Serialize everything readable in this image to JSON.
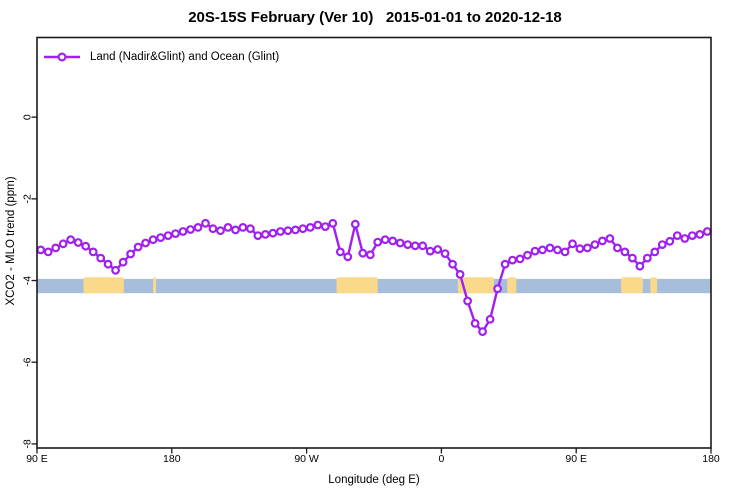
{
  "title": "20S-15S February (Ver 10)   2015-01-01 to 2020-12-18",
  "chart_data": {
    "type": "line",
    "title": "20S-15S February (Ver 10)   2015-01-01 to 2020-12-18",
    "xlabel": "Longitude (deg E)",
    "ylabel": "XCO2 - MLO trend (ppm)",
    "xlim": [
      90,
      540
    ],
    "ylim": [
      -8.1,
      1.95
    ],
    "grid": false,
    "x_ticks": [
      {
        "value": 90,
        "label": "90 E"
      },
      {
        "value": 180,
        "label": "180"
      },
      {
        "value": 270,
        "label": "90 W"
      },
      {
        "value": 360,
        "label": "0"
      },
      {
        "value": 450,
        "label": "90 E"
      },
      {
        "value": 540,
        "label": "180"
      }
    ],
    "y_ticks": [
      {
        "value": 0,
        "label": "0"
      },
      {
        "value": -2,
        "label": "-2"
      },
      {
        "value": -4,
        "label": "-4"
      },
      {
        "value": -6,
        "label": "-6"
      },
      {
        "value": -8,
        "label": "-8"
      }
    ],
    "legend": {
      "label": "Land (Nadir&Glint) and Ocean (Glint)",
      "position": "top-left",
      "marker": "open-circle-on-line"
    },
    "series": [
      {
        "name": "Land (Nadir&Glint) and Ocean (Glint)",
        "color": "#A020F0",
        "marker": "open-circle",
        "x": [
          92.5,
          97.5,
          102.5,
          107.5,
          112.5,
          117.5,
          122.5,
          127.5,
          132.5,
          137.5,
          142.5,
          147.5,
          152.5,
          157.5,
          162.5,
          167.5,
          172.5,
          177.5,
          182.5,
          187.5,
          192.5,
          197.5,
          202.5,
          207.5,
          212.5,
          217.5,
          222.5,
          227.5,
          232.5,
          237.5,
          242.5,
          247.5,
          252.5,
          257.5,
          262.5,
          267.5,
          272.5,
          277.5,
          282.5,
          287.5,
          292.5,
          297.5,
          302.5,
          307.5,
          312.5,
          317.5,
          322.5,
          327.5,
          332.5,
          337.5,
          342.5,
          347.5,
          352.5,
          357.5,
          362.5,
          367.5,
          372.5,
          377.5,
          382.5,
          387.5,
          392.5,
          397.5,
          402.5,
          407.5,
          412.5,
          417.5,
          422.5,
          427.5,
          432.5,
          437.5,
          442.5,
          447.5,
          452.5,
          457.5,
          462.5,
          467.5,
          472.5,
          477.5,
          482.5,
          487.5,
          492.5,
          497.5,
          502.5,
          507.5,
          512.5,
          517.5,
          522.5,
          527.5,
          532.5,
          537.5
        ],
        "y": [
          -3.25,
          -3.3,
          -3.2,
          -3.1,
          -3.0,
          -3.07,
          -3.16,
          -3.3,
          -3.45,
          -3.6,
          -3.75,
          -3.55,
          -3.35,
          -3.18,
          -3.08,
          -3.0,
          -2.95,
          -2.9,
          -2.85,
          -2.8,
          -2.75,
          -2.7,
          -2.6,
          -2.73,
          -2.78,
          -2.7,
          -2.76,
          -2.7,
          -2.73,
          -2.9,
          -2.87,
          -2.84,
          -2.8,
          -2.78,
          -2.76,
          -2.73,
          -2.7,
          -2.64,
          -2.68,
          -2.6,
          -3.3,
          -3.42,
          -2.62,
          -3.33,
          -3.37,
          -3.06,
          -3.0,
          -3.03,
          -3.08,
          -3.12,
          -3.15,
          -3.15,
          -3.28,
          -3.24,
          -3.34,
          -3.6,
          -3.85,
          -4.5,
          -5.05,
          -5.25,
          -4.95,
          -4.2,
          -3.6,
          -3.5,
          -3.47,
          -3.38,
          -3.28,
          -3.25,
          -3.2,
          -3.25,
          -3.3,
          -3.1,
          -3.22,
          -3.2,
          -3.12,
          -3.03,
          -2.97,
          -3.2,
          -3.3,
          -3.45,
          -3.65,
          -3.45,
          -3.3,
          -3.12,
          -3.04,
          -2.9,
          -2.97,
          -2.9,
          -2.87,
          -2.8
        ]
      }
    ],
    "surface_band": {
      "description": "land/ocean strip along latitude band",
      "y_top": -3.96,
      "y_bottom": -4.31,
      "ocean_color": "#A6BEDC",
      "land_color": "#FBD98B",
      "ocean_range": [
        90,
        540
      ],
      "land_segments": [
        [
          121,
          148
        ],
        [
          167.5,
          169.5
        ],
        [
          290,
          317.5
        ],
        [
          371,
          395
        ],
        [
          404,
          410
        ],
        [
          480,
          494.5
        ],
        [
          499.5,
          504
        ]
      ]
    }
  }
}
